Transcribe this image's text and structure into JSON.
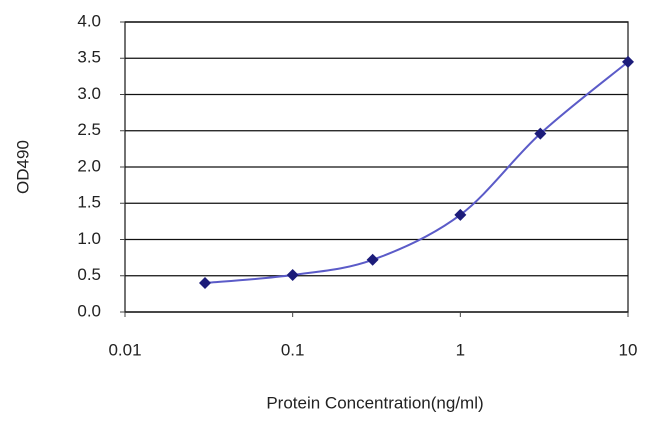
{
  "chart_data": {
    "type": "line",
    "x_label": "Protein Concentration(ng/ml)",
    "y_label": "OD490",
    "x": [
      0.03,
      0.1,
      0.3,
      1,
      3,
      10
    ],
    "values": [
      0.4,
      0.51,
      0.72,
      1.34,
      2.46,
      3.45
    ],
    "color": "#5b5bc8",
    "marker_color": "#1c1c7a",
    "x_log": true,
    "xlim": [
      0.01,
      10
    ],
    "xticks": [
      0.01,
      0.1,
      1,
      10
    ],
    "ylim": [
      0,
      4
    ],
    "yticks": [
      {
        "value": 0,
        "label": "0.0"
      },
      {
        "value": 0.5,
        "label": "0.5"
      },
      {
        "value": 1,
        "label": "1.0"
      },
      {
        "value": 1.5,
        "label": "1.5"
      },
      {
        "value": 2,
        "label": "2.0"
      },
      {
        "value": 2.5,
        "label": "2.5"
      },
      {
        "value": 3,
        "label": "3.0"
      },
      {
        "value": 3.5,
        "label": "3.5"
      },
      {
        "value": 4,
        "label": "4.0"
      }
    ],
    "grid": true
  }
}
